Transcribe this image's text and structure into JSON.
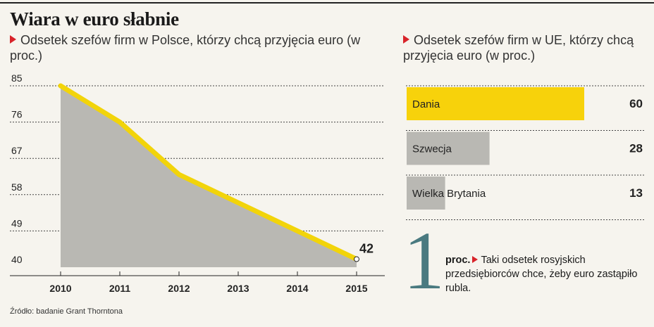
{
  "title": "Wiara w euro słabnie",
  "subtitle_left": "Odsetek szefów firm w Polsce, którzy chcą przyjęcia euro (w proc.)",
  "subtitle_right": "Odsetek szefów firm w UE, którzy chcą przyjęcia euro (w proc.)",
  "note": {
    "big_number": "1",
    "unit": "proc.",
    "text": "Taki odsetek rosyjskich przedsiębiorców chce, żeby euro zastąpiło rubla."
  },
  "source": "Źródło: badanie Grant Thorntona",
  "colors": {
    "line": "#f2d40a",
    "area": "#b9b8b3",
    "highlight_bar": "#f7d20b",
    "bar": "#b9b8b3",
    "accent_triangle": "#d8232a",
    "big_number": "#4a7a80"
  },
  "chart_data": [
    {
      "type": "area",
      "x": [
        2010,
        2011,
        2012,
        2013,
        2014,
        2015
      ],
      "values": [
        85,
        76,
        63,
        56,
        49,
        42
      ],
      "ylim": [
        40,
        85
      ],
      "yticks": [
        85,
        76,
        67,
        58,
        49,
        40
      ],
      "end_label": "42",
      "grid": "dashed horizontal"
    },
    {
      "type": "bar",
      "orientation": "horizontal",
      "categories": [
        "Dania",
        "Szwecja",
        "Wielka Brytania"
      ],
      "values": [
        60,
        28,
        13
      ],
      "labels": [
        "60",
        "28",
        "13"
      ],
      "highlight": "Dania",
      "grid": "dashed horizontal"
    }
  ]
}
